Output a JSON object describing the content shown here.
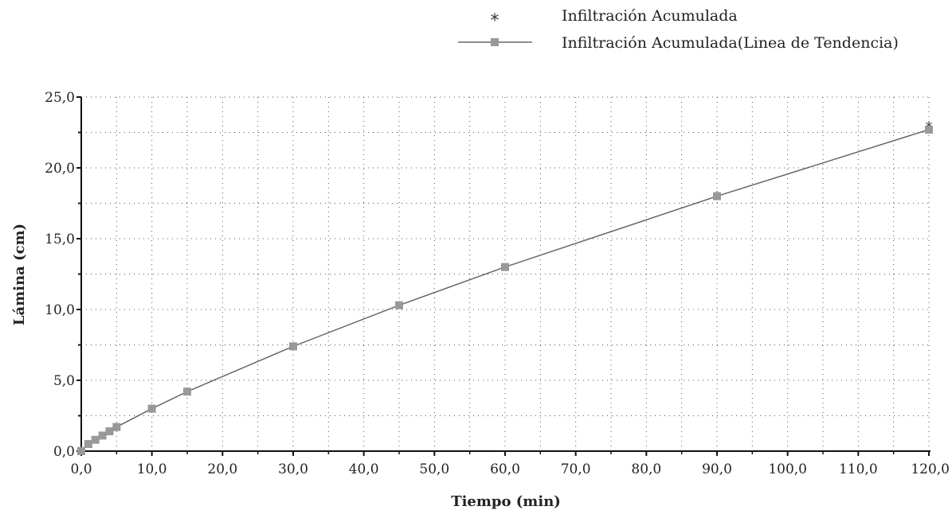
{
  "chart_data": {
    "type": "line",
    "title": "",
    "xlabel": "Tiempo (min)",
    "ylabel": "Lámina (cm)",
    "xlim": [
      0,
      120
    ],
    "ylim": [
      0,
      25
    ],
    "x_ticks": [
      0,
      10,
      20,
      30,
      40,
      50,
      60,
      70,
      80,
      90,
      100,
      110,
      120
    ],
    "y_ticks": [
      0,
      5,
      10,
      15,
      20,
      25
    ],
    "x_tick_labels": [
      "0,0",
      "10,0",
      "20,0",
      "30,0",
      "40,0",
      "50,0",
      "60,0",
      "70,0",
      "80,0",
      "90,0",
      "100,0",
      "110,0",
      "120,0"
    ],
    "y_tick_labels": [
      "0,0",
      "5,0",
      "10,0",
      "15,0",
      "20,0",
      "25,0"
    ],
    "grid": true,
    "legend_position": "top-right",
    "series": [
      {
        "name": "Infiltración Acumulada",
        "marker": "asterisk",
        "line": false,
        "color": "#333333",
        "x": [
          0,
          1,
          2,
          3,
          4,
          5,
          10,
          15,
          30,
          45,
          60,
          90,
          120
        ],
        "y": [
          0.1,
          0.5,
          0.8,
          1.1,
          1.4,
          1.7,
          3.0,
          4.2,
          7.4,
          10.3,
          13.0,
          18.1,
          23.0
        ]
      },
      {
        "name": "Infiltración Acumulada(Linea de Tendencia)",
        "marker": "square",
        "line": true,
        "color": "#888888",
        "x": [
          0,
          1,
          2,
          3,
          4,
          5,
          10,
          15,
          30,
          45,
          60,
          90,
          120
        ],
        "y": [
          0.0,
          0.5,
          0.8,
          1.1,
          1.4,
          1.7,
          3.0,
          4.2,
          7.4,
          10.3,
          13.0,
          18.0,
          22.7
        ]
      }
    ]
  }
}
